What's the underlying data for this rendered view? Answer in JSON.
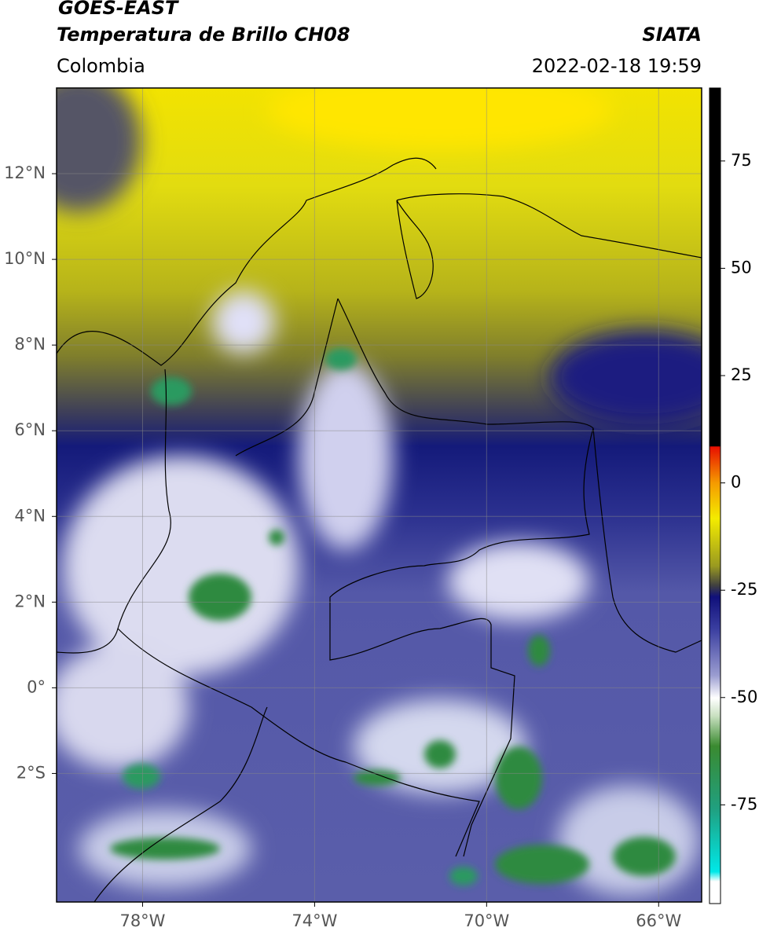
{
  "header": {
    "satellite": "GOES-EAST",
    "product": "Temperatura de Brillo CH08",
    "region": "Colombia",
    "source": "SIATA",
    "datetime": "2022-02-18 19:59"
  },
  "map": {
    "xlim": [
      -80,
      -65
    ],
    "ylim": [
      -5,
      14
    ],
    "xticks": [
      {
        "value": -78,
        "label": "78°W"
      },
      {
        "value": -74,
        "label": "74°W"
      },
      {
        "value": -70,
        "label": "70°W"
      },
      {
        "value": -66,
        "label": "66°W"
      }
    ],
    "yticks": [
      {
        "value": 12,
        "label": "12°N"
      },
      {
        "value": 10,
        "label": "10°N"
      },
      {
        "value": 8,
        "label": "8°N"
      },
      {
        "value": 6,
        "label": "6°N"
      },
      {
        "value": 4,
        "label": "4°N"
      },
      {
        "value": 2,
        "label": "2°N"
      },
      {
        "value": 0,
        "label": "0°"
      },
      {
        "value": -2,
        "label": "2°S"
      }
    ]
  },
  "colorbar": {
    "lim": [
      -98,
      92
    ],
    "ticks": [
      75,
      50,
      25,
      0,
      -25,
      -50,
      -75
    ]
  }
}
